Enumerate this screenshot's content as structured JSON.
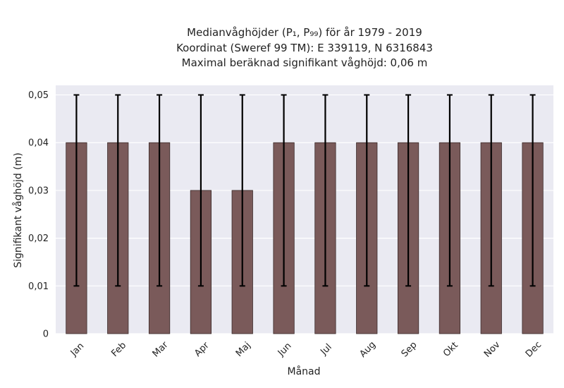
{
  "chart_data": {
    "type": "bar",
    "title_lines": [
      "Medianvåghöjder (P₁, P₉₉) för år 1979 - 2019",
      "Koordinat (Sweref 99 TM): E 339119, N 6316843",
      "Maximal beräknad signifikant våghöjd: 0,06 m"
    ],
    "xlabel": "Månad",
    "ylabel": "Signifikant våghöjd (m)",
    "categories": [
      "Jan",
      "Feb",
      "Mar",
      "Apr",
      "Maj",
      "Jun",
      "Jul",
      "Aug",
      "Sep",
      "Okt",
      "Nov",
      "Dec"
    ],
    "values": [
      0.04,
      0.04,
      0.04,
      0.03,
      0.03,
      0.04,
      0.04,
      0.04,
      0.04,
      0.04,
      0.04,
      0.04
    ],
    "err_low": [
      0.01,
      0.01,
      0.01,
      0.01,
      0.01,
      0.01,
      0.01,
      0.01,
      0.01,
      0.01,
      0.01,
      0.01
    ],
    "err_high": [
      0.05,
      0.05,
      0.05,
      0.05,
      0.05,
      0.05,
      0.05,
      0.05,
      0.05,
      0.05,
      0.05,
      0.05
    ],
    "ylim": [
      0,
      0.052
    ],
    "yticks": [
      0,
      0.01,
      0.02,
      0.03,
      0.04,
      0.05
    ],
    "ytick_labels": [
      "0",
      "0,01",
      "0,02",
      "0,03",
      "0,04",
      "0,05"
    ],
    "grid": true,
    "colors": {
      "bar": "#7a5a5a",
      "bar_edge": "#3a2a2a",
      "errorbar": "#000000",
      "plot_background": "#eaeaf2",
      "grid": "#ffffff"
    }
  }
}
